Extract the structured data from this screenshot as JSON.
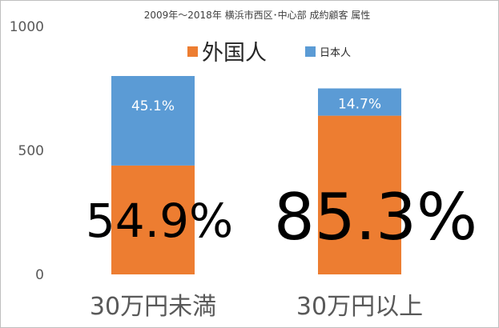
{
  "chart_data": {
    "type": "bar",
    "stacked": true,
    "title": "2009年～2018年 横浜市西区･中心部 成約顧客 属性",
    "categories": [
      "30万円未満",
      "30万円以上"
    ],
    "series": [
      {
        "name": "外国人",
        "color": "#ED7D31",
        "values": [
          439,
          640
        ],
        "label_text": [
          "54.9%",
          "85.3%"
        ]
      },
      {
        "name": "日本人",
        "color": "#5B9BD5",
        "values": [
          361,
          110
        ],
        "label_text": [
          "45.1%",
          "14.7%"
        ]
      }
    ],
    "ylim": [
      0,
      1000
    ],
    "yticks": [
      "0",
      "500",
      "1000"
    ],
    "ytick_values": [
      0,
      500,
      1000
    ],
    "grid": false,
    "legend_position": "top"
  }
}
